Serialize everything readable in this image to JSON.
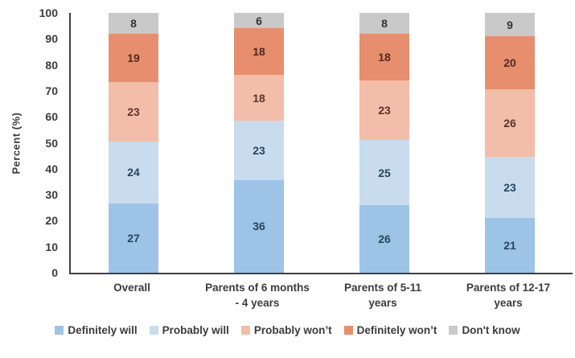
{
  "chart_data": {
    "type": "bar",
    "stacked": true,
    "percent_stacked": true,
    "title": "",
    "xlabel": "",
    "ylabel": "Percent (%)",
    "ylim": [
      0,
      100
    ],
    "yticks": [
      0,
      10,
      20,
      30,
      40,
      50,
      60,
      70,
      80,
      90,
      100
    ],
    "grid": false,
    "legend_position": "bottom",
    "categories": [
      "Overall",
      "Parents of 6 months - 4 years",
      "Parents of 5-11 years",
      "Parents of 12-17 years"
    ],
    "category_label_lines": [
      [
        "Overall"
      ],
      [
        "Parents of 6 months",
        "- 4 years"
      ],
      [
        "Parents of 5-11",
        "years"
      ],
      [
        "Parents of 12-17",
        "years"
      ]
    ],
    "series": [
      {
        "name": "Definitely will",
        "color": "#9dc3e6",
        "label_color": "#27455c",
        "values": [
          27,
          36,
          26,
          21
        ]
      },
      {
        "name": "Probably will",
        "color": "#c9dcee",
        "label_color": "#27455c",
        "values": [
          24,
          23,
          25,
          23
        ]
      },
      {
        "name": "Probably won’t",
        "color": "#f2bda9",
        "label_color": "#5e332a",
        "values": [
          23,
          18,
          23,
          26
        ]
      },
      {
        "name": "Definitely won’t",
        "color": "#e78e6e",
        "label_color": "#54281d",
        "values": [
          19,
          18,
          18,
          20
        ]
      },
      {
        "name": "Don't know",
        "color": "#c9c9c9",
        "label_color": "#333333",
        "values": [
          8,
          6,
          8,
          9
        ]
      }
    ],
    "axis_color": "#404040",
    "text_color": "#3b3b3b"
  }
}
